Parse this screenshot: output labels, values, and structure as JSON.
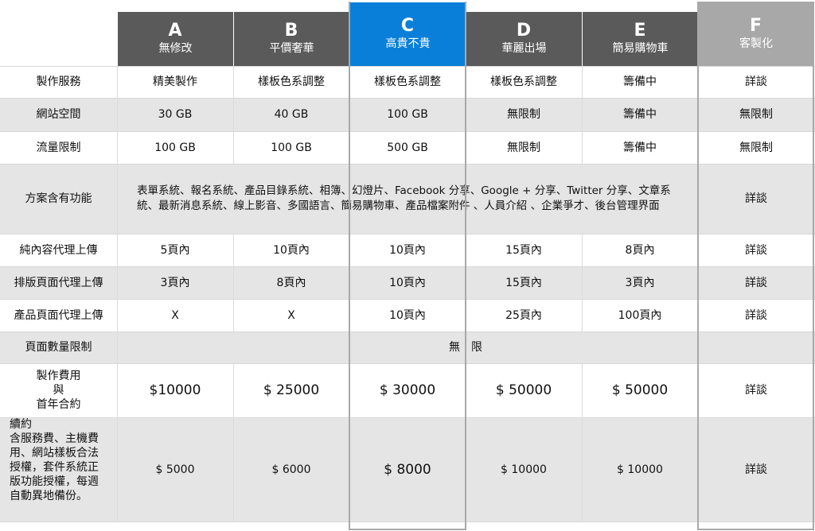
{
  "plans": [
    {
      "letter": "A",
      "name": "無修改"
    },
    {
      "letter": "B",
      "name": "平價奢華"
    },
    {
      "letter": "C",
      "name": "高貴不貴"
    },
    {
      "letter": "D",
      "name": "華麗出場"
    },
    {
      "letter": "E",
      "name": "簡易購物車"
    },
    {
      "letter": "F",
      "name": "客製化"
    }
  ],
  "colors": {
    "header_gray": "#5a5a5a",
    "header_blue": "#0a7fd9",
    "header_custom": "#a8a8a8",
    "row_gray": "#e5e5e5"
  },
  "rows": {
    "service": {
      "label": "製作服務",
      "cells": [
        "精美製作",
        "樣板色系調整",
        "樣板色系調整",
        "樣板色系調整",
        "籌備中",
        "詳談"
      ]
    },
    "space": {
      "label": "網站空間",
      "cells": [
        "30 GB",
        "40 GB",
        "100 GB",
        "無限制",
        "籌備中",
        "無限制"
      ]
    },
    "traffic": {
      "label": "流量限制",
      "cells": [
        "100 GB",
        "100 GB",
        "500 GB",
        "無限制",
        "籌備中",
        "無限制"
      ]
    },
    "features": {
      "label": "方案含有功能",
      "text": "表單系統、報名系統、產品目錄系統、相簿、幻燈片、Facebook 分享、Google + 分享、Twitter 分享、文章系統、最新消息系統、線上影音、多國語言、簡易購物車、產品檔案附件 、人員介紹 、企業爭才、後台管理界面",
      "custom": "詳談"
    },
    "content_upload": {
      "label": "純內容代理上傳",
      "cells": [
        "5頁內",
        "10頁內",
        "10頁內",
        "15頁內",
        "8頁內",
        "詳談"
      ]
    },
    "layout_upload": {
      "label": "排版頁面代理上傳",
      "cells": [
        "3頁內",
        "8頁內",
        "10頁內",
        "15頁內",
        "3頁內",
        "詳談"
      ]
    },
    "product_upload": {
      "label": "產品頁面代理上傳",
      "cells": [
        "X",
        "X",
        "10頁內",
        "25頁內",
        "100頁內",
        "詳談"
      ]
    },
    "page_limit": {
      "label": "頁面數量限制",
      "value": "無　限"
    },
    "fee": {
      "label_l1": "製作費用",
      "label_l2": "與",
      "label_l3": "首年合約",
      "cells": [
        "$10000",
        "$ 25000",
        "$ 30000",
        "$ 50000",
        "$ 50000",
        "詳談"
      ]
    },
    "renewal": {
      "label_l1": "續約",
      "label_l2": "含服務費、主機費",
      "label_l3": "用、網站樣板合法",
      "label_l4": "授權，套件系統正",
      "label_l5": "版功能授權，每週",
      "label_l6": "自動異地備份。",
      "cells": [
        "$ 5000",
        "$ 6000",
        "$ 8000",
        "$ 10000",
        "$ 10000",
        "詳談"
      ]
    }
  }
}
